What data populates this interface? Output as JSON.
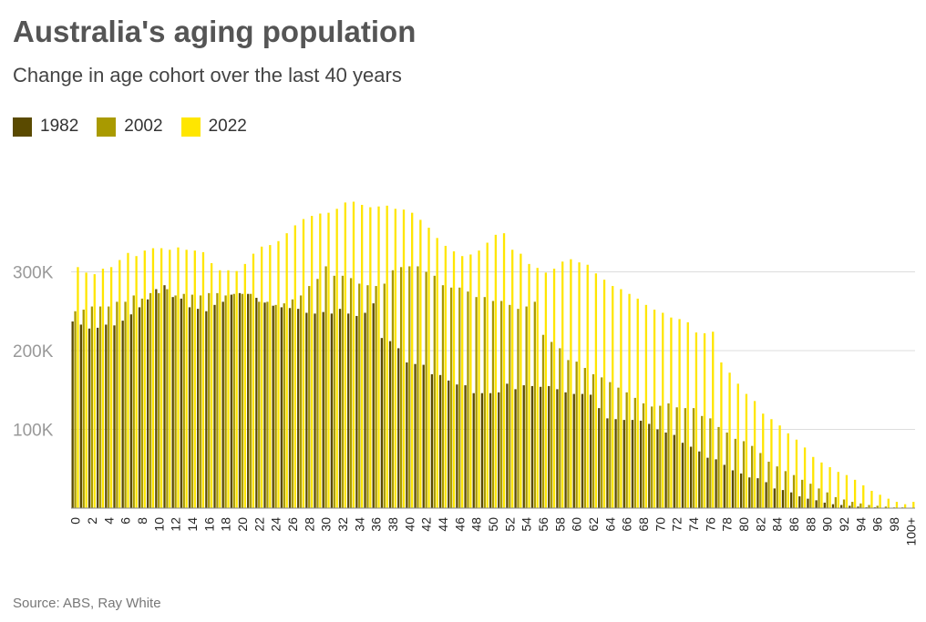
{
  "title": "Australia's aging population",
  "subtitle": "Change in age cohort over the last 40 years",
  "source": "Source: ABS, Ray White",
  "colors": {
    "1982": "#5a4a00",
    "2002": "#a99a00",
    "2022": "#ffe600",
    "grid": "#dddddd",
    "axis": "#888888"
  },
  "chart_data": {
    "type": "bar",
    "title": "Australia's aging population",
    "subtitle": "Change in age cohort over the last 40 years",
    "xlabel": "",
    "ylabel": "",
    "ylim": [
      0,
      400000
    ],
    "yticks": [
      100000,
      200000,
      300000
    ],
    "ytick_labels": [
      "100K",
      "200K",
      "300K"
    ],
    "grid": true,
    "legend_position": "top-left",
    "categories": [
      "0",
      "1",
      "2",
      "3",
      "4",
      "5",
      "6",
      "7",
      "8",
      "9",
      "10",
      "11",
      "12",
      "13",
      "14",
      "15",
      "16",
      "17",
      "18",
      "19",
      "20",
      "21",
      "22",
      "23",
      "24",
      "25",
      "26",
      "27",
      "28",
      "29",
      "30",
      "31",
      "32",
      "33",
      "34",
      "35",
      "36",
      "37",
      "38",
      "39",
      "40",
      "41",
      "42",
      "43",
      "44",
      "45",
      "46",
      "47",
      "48",
      "49",
      "50",
      "51",
      "52",
      "53",
      "54",
      "55",
      "56",
      "57",
      "58",
      "59",
      "60",
      "61",
      "62",
      "63",
      "64",
      "65",
      "66",
      "67",
      "68",
      "69",
      "70",
      "71",
      "72",
      "73",
      "74",
      "75",
      "76",
      "77",
      "78",
      "79",
      "80",
      "81",
      "82",
      "83",
      "84",
      "85",
      "86",
      "87",
      "88",
      "89",
      "90",
      "91",
      "92",
      "93",
      "94",
      "95",
      "96",
      "97",
      "98",
      "99",
      "100+"
    ],
    "x_tick_labels": [
      "0",
      "2",
      "4",
      "6",
      "8",
      "10",
      "12",
      "14",
      "16",
      "18",
      "20",
      "22",
      "24",
      "26",
      "28",
      "30",
      "32",
      "34",
      "36",
      "38",
      "40",
      "42",
      "44",
      "46",
      "48",
      "50",
      "52",
      "54",
      "56",
      "58",
      "60",
      "62",
      "64",
      "66",
      "68",
      "70",
      "72",
      "74",
      "76",
      "78",
      "80",
      "82",
      "84",
      "86",
      "88",
      "90",
      "92",
      "94",
      "96",
      "98",
      "100+"
    ],
    "series": [
      {
        "name": "1982",
        "values": [
          237000,
          233000,
          228000,
          229000,
          233000,
          232000,
          238000,
          246000,
          255000,
          265000,
          278000,
          283000,
          268000,
          266000,
          255000,
          253000,
          250000,
          258000,
          262000,
          271000,
          273000,
          272000,
          267000,
          261000,
          257000,
          255000,
          254000,
          253000,
          248000,
          247000,
          249000,
          247000,
          253000,
          247000,
          244000,
          248000,
          260000,
          216000,
          212000,
          203000,
          185000,
          183000,
          182000,
          170000,
          169000,
          162000,
          157000,
          156000,
          146000,
          146000,
          146000,
          147000,
          158000,
          151000,
          156000,
          155000,
          154000,
          155000,
          151000,
          147000,
          145000,
          145000,
          144000,
          127000,
          114000,
          113000,
          112000,
          112000,
          111000,
          107000,
          100000,
          96000,
          93000,
          83000,
          78000,
          72000,
          64000,
          62000,
          55000,
          48000,
          44000,
          39000,
          38000,
          33000,
          25000,
          23000,
          20000,
          15000,
          12000,
          10000,
          7000,
          5000,
          4000,
          3000,
          2000,
          1000,
          1000,
          500,
          300,
          200,
          100
        ]
      },
      {
        "name": "2002",
        "values": [
          250000,
          252000,
          256000,
          256000,
          256000,
          262000,
          262000,
          270000,
          266000,
          273000,
          273000,
          278000,
          270000,
          272000,
          271000,
          270000,
          273000,
          273000,
          270000,
          272000,
          272000,
          272000,
          262000,
          262000,
          258000,
          260000,
          265000,
          270000,
          282000,
          291000,
          307000,
          295000,
          295000,
          292000,
          285000,
          283000,
          282000,
          285000,
          302000,
          306000,
          307000,
          307000,
          300000,
          295000,
          283000,
          280000,
          280000,
          275000,
          268000,
          268000,
          263000,
          263000,
          258000,
          253000,
          256000,
          262000,
          220000,
          211000,
          203000,
          188000,
          186000,
          178000,
          170000,
          166000,
          160000,
          153000,
          147000,
          140000,
          133000,
          129000,
          130000,
          133000,
          128000,
          127000,
          127000,
          117000,
          114000,
          103000,
          96000,
          88000,
          85000,
          79000,
          70000,
          59000,
          53000,
          47000,
          42000,
          36000,
          31000,
          25000,
          20000,
          14000,
          11000,
          8000,
          6000,
          4000,
          3000,
          2000,
          1000,
          1000,
          500
        ]
      },
      {
        "name": "2022",
        "values": [
          306000,
          299000,
          297000,
          304000,
          306000,
          315000,
          324000,
          320000,
          327000,
          330000,
          330000,
          328000,
          331000,
          328000,
          327000,
          325000,
          311000,
          302000,
          302000,
          301000,
          310000,
          323000,
          332000,
          334000,
          339000,
          349000,
          359000,
          367000,
          371000,
          374000,
          375000,
          380000,
          388000,
          389000,
          385000,
          382000,
          383000,
          384000,
          380000,
          379000,
          375000,
          366000,
          356000,
          343000,
          333000,
          326000,
          320000,
          322000,
          327000,
          337000,
          347000,
          349000,
          328000,
          323000,
          310000,
          305000,
          299000,
          304000,
          313000,
          316000,
          312000,
          309000,
          298000,
          290000,
          282000,
          278000,
          272000,
          266000,
          258000,
          252000,
          248000,
          242000,
          240000,
          236000,
          223000,
          222000,
          224000,
          185000,
          172000,
          158000,
          145000,
          136000,
          120000,
          113000,
          105000,
          95000,
          87000,
          77000,
          65000,
          58000,
          52000,
          46000,
          42000,
          36000,
          29000,
          22000,
          17000,
          12000,
          8000,
          5000,
          8000
        ]
      }
    ]
  }
}
